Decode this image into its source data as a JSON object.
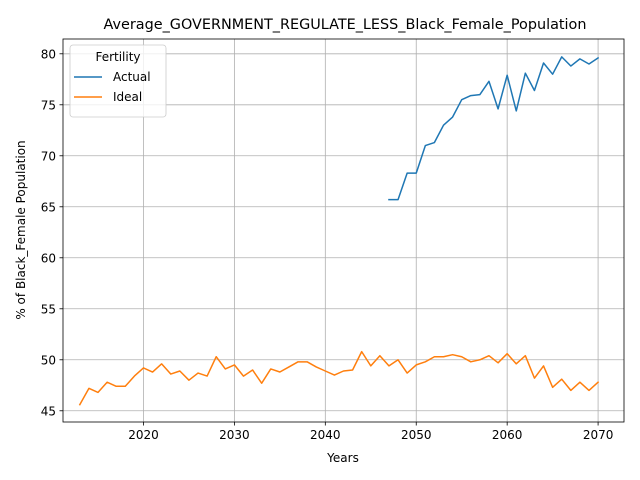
{
  "chart_data": {
    "type": "line",
    "title": "Average_GOVERNMENT_REGULATE_LESS_Black_Female_Population",
    "xlabel": "Years",
    "ylabel": "% of Black_Female Population",
    "xlim": [
      2011.15,
      2072.85
    ],
    "ylim": [
      43.9,
      81.45
    ],
    "xticks": [
      2020,
      2030,
      2040,
      2050,
      2060,
      2070
    ],
    "yticks": [
      45,
      50,
      55,
      60,
      65,
      70,
      75,
      80
    ],
    "grid": true,
    "legend": {
      "title": "Fertility",
      "placement": "top-left"
    },
    "series": [
      {
        "name": "Actual",
        "color": "#1f77b4",
        "x": [
          2047,
          2048,
          2049,
          2050,
          2051,
          2052,
          2053,
          2054,
          2055,
          2056,
          2057,
          2058,
          2059,
          2060,
          2061,
          2062,
          2063,
          2064,
          2065,
          2066,
          2067,
          2068,
          2069,
          2070
        ],
        "y": [
          65.7,
          65.7,
          68.3,
          68.3,
          71.0,
          71.3,
          73.0,
          73.8,
          75.5,
          75.9,
          76.0,
          77.3,
          74.6,
          77.9,
          74.4,
          78.1,
          76.4,
          79.1,
          78.0,
          79.7,
          78.8,
          79.5,
          79.0,
          79.6
        ]
      },
      {
        "name": "Ideal",
        "color": "#ff7f0e",
        "x": [
          2013,
          2014,
          2015,
          2016,
          2017,
          2018,
          2019,
          2020,
          2021,
          2022,
          2023,
          2024,
          2025,
          2026,
          2027,
          2028,
          2029,
          2030,
          2031,
          2032,
          2033,
          2034,
          2035,
          2036,
          2037,
          2038,
          2039,
          2040,
          2041,
          2042,
          2043,
          2044,
          2045,
          2046,
          2047,
          2048,
          2049,
          2050,
          2051,
          2052,
          2053,
          2054,
          2055,
          2056,
          2057,
          2058,
          2059,
          2060,
          2061,
          2062,
          2063,
          2064,
          2065,
          2066,
          2067,
          2068,
          2069,
          2070
        ],
        "y": [
          45.6,
          47.2,
          46.8,
          47.8,
          47.4,
          47.4,
          48.4,
          49.2,
          48.8,
          49.6,
          48.6,
          48.9,
          48.0,
          48.7,
          48.4,
          50.3,
          49.1,
          49.5,
          48.4,
          49.0,
          47.7,
          49.1,
          48.8,
          49.3,
          49.8,
          49.8,
          49.3,
          48.9,
          48.5,
          48.9,
          49.0,
          50.8,
          49.4,
          50.4,
          49.4,
          50.0,
          48.7,
          49.5,
          49.8,
          50.3,
          50.3,
          50.5,
          50.3,
          49.8,
          50.0,
          50.4,
          49.7,
          50.6,
          49.6,
          50.4,
          48.2,
          49.4,
          47.3,
          48.1,
          47.0,
          47.8,
          47.0,
          47.8
        ]
      }
    ]
  }
}
